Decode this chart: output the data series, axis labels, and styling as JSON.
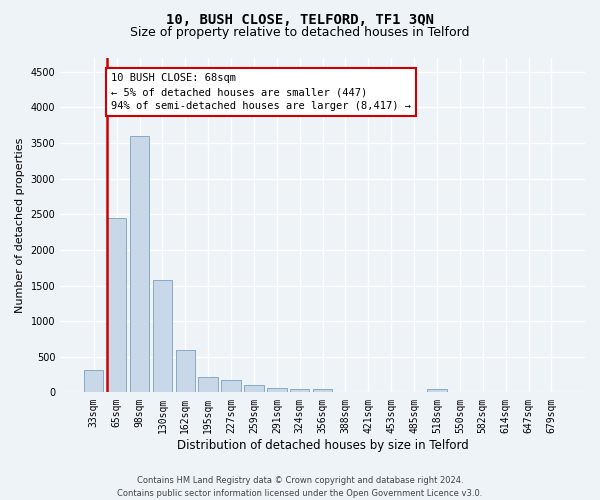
{
  "title": "10, BUSH CLOSE, TELFORD, TF1 3QN",
  "subtitle": "Size of property relative to detached houses in Telford",
  "xlabel": "Distribution of detached houses by size in Telford",
  "ylabel": "Number of detached properties",
  "categories": [
    "33sqm",
    "65sqm",
    "98sqm",
    "130sqm",
    "162sqm",
    "195sqm",
    "227sqm",
    "259sqm",
    "291sqm",
    "324sqm",
    "356sqm",
    "388sqm",
    "421sqm",
    "453sqm",
    "485sqm",
    "518sqm",
    "550sqm",
    "582sqm",
    "614sqm",
    "647sqm",
    "679sqm"
  ],
  "values": [
    315,
    2450,
    3600,
    1580,
    590,
    210,
    175,
    100,
    60,
    47,
    45,
    0,
    0,
    0,
    0,
    50,
    0,
    0,
    0,
    0,
    0
  ],
  "bar_color": "#c8d8e8",
  "bar_edge_color": "#7aa0c0",
  "highlight_color": "#cc0000",
  "highlight_bar_index": 1,
  "ylim": [
    0,
    4700
  ],
  "yticks": [
    0,
    500,
    1000,
    1500,
    2000,
    2500,
    3000,
    3500,
    4000,
    4500
  ],
  "annotation_text": "10 BUSH CLOSE: 68sqm\n← 5% of detached houses are smaller (447)\n94% of semi-detached houses are larger (8,417) →",
  "footer_line1": "Contains HM Land Registry data © Crown copyright and database right 2024.",
  "footer_line2": "Contains public sector information licensed under the Open Government Licence v3.0.",
  "bg_color": "#eef3f8",
  "grid_color": "#ffffff",
  "title_fontsize": 10,
  "subtitle_fontsize": 9,
  "ylabel_fontsize": 8,
  "xlabel_fontsize": 8.5,
  "tick_fontsize": 7,
  "footer_fontsize": 6,
  "annot_fontsize": 7.5
}
